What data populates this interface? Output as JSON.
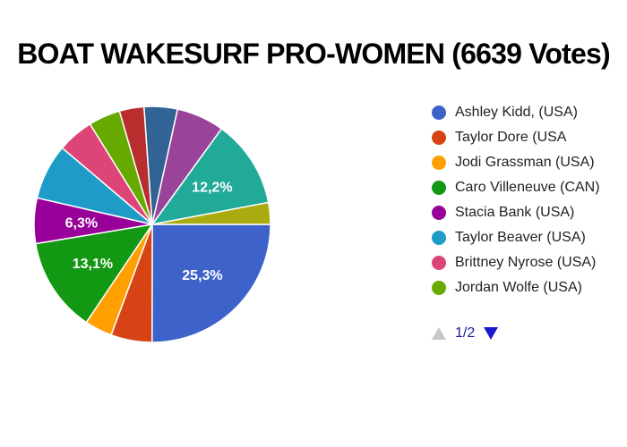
{
  "chart_data": {
    "type": "pie",
    "title": "BOAT WAKESURF PRO-WOMEN (6639 Votes)",
    "slices": [
      {
        "name": "Ashley Kidd, (USA)",
        "value": 25.3,
        "color": "#3d62c9",
        "label": "25,3%"
      },
      {
        "name": "Taylor Dore (USA",
        "value": 5.7,
        "color": "#d84315",
        "label": ""
      },
      {
        "name": "Jodi Grassman (USA)",
        "value": 3.8,
        "color": "#ff9f00",
        "label": ""
      },
      {
        "name": "Caro Villeneuve (CAN)",
        "value": 13.1,
        "color": "#129812",
        "label": "13,1%"
      },
      {
        "name": "Stacia Bank (USA)",
        "value": 6.3,
        "color": "#990099",
        "label": "6,3%"
      },
      {
        "name": "Taylor Beaver (USA)",
        "value": 7.7,
        "color": "#1f9bc8",
        "label": ""
      },
      {
        "name": "Brittney Nyrose (USA)",
        "value": 5.0,
        "color": "#dd4477",
        "label": ""
      },
      {
        "name": "Jordan Wolfe (USA)",
        "value": 4.4,
        "color": "#66aa00",
        "label": ""
      },
      {
        "name": "",
        "value": 3.4,
        "color": "#b82e2e",
        "label": ""
      },
      {
        "name": "",
        "value": 4.6,
        "color": "#316395",
        "label": ""
      },
      {
        "name": "",
        "value": 6.6,
        "color": "#994499",
        "label": ""
      },
      {
        "name": "",
        "value": 12.2,
        "color": "#22aa99",
        "label": "12,2%"
      },
      {
        "name": "",
        "value": 3.0,
        "color": "#aaaa11",
        "label": ""
      }
    ],
    "legend_position": "right"
  },
  "legend": {
    "items": [
      {
        "label": "Ashley Kidd, (USA)",
        "color": "#3d62c9"
      },
      {
        "label": "Taylor Dore (USA",
        "color": "#d84315"
      },
      {
        "label": "Jodi Grassman (USA)",
        "color": "#ff9f00"
      },
      {
        "label": "Caro Villeneuve (CAN)",
        "color": "#129812"
      },
      {
        "label": "Stacia Bank (USA)",
        "color": "#990099"
      },
      {
        "label": "Taylor Beaver (USA)",
        "color": "#1f9bc8"
      },
      {
        "label": "Brittney Nyrose (USA)",
        "color": "#dd4477"
      },
      {
        "label": "Jordan Wolfe (USA)",
        "color": "#66aa00"
      }
    ]
  },
  "pager": {
    "text": "1/2",
    "prev_icon": "triangle-up-icon",
    "next_icon": "triangle-down-icon"
  }
}
